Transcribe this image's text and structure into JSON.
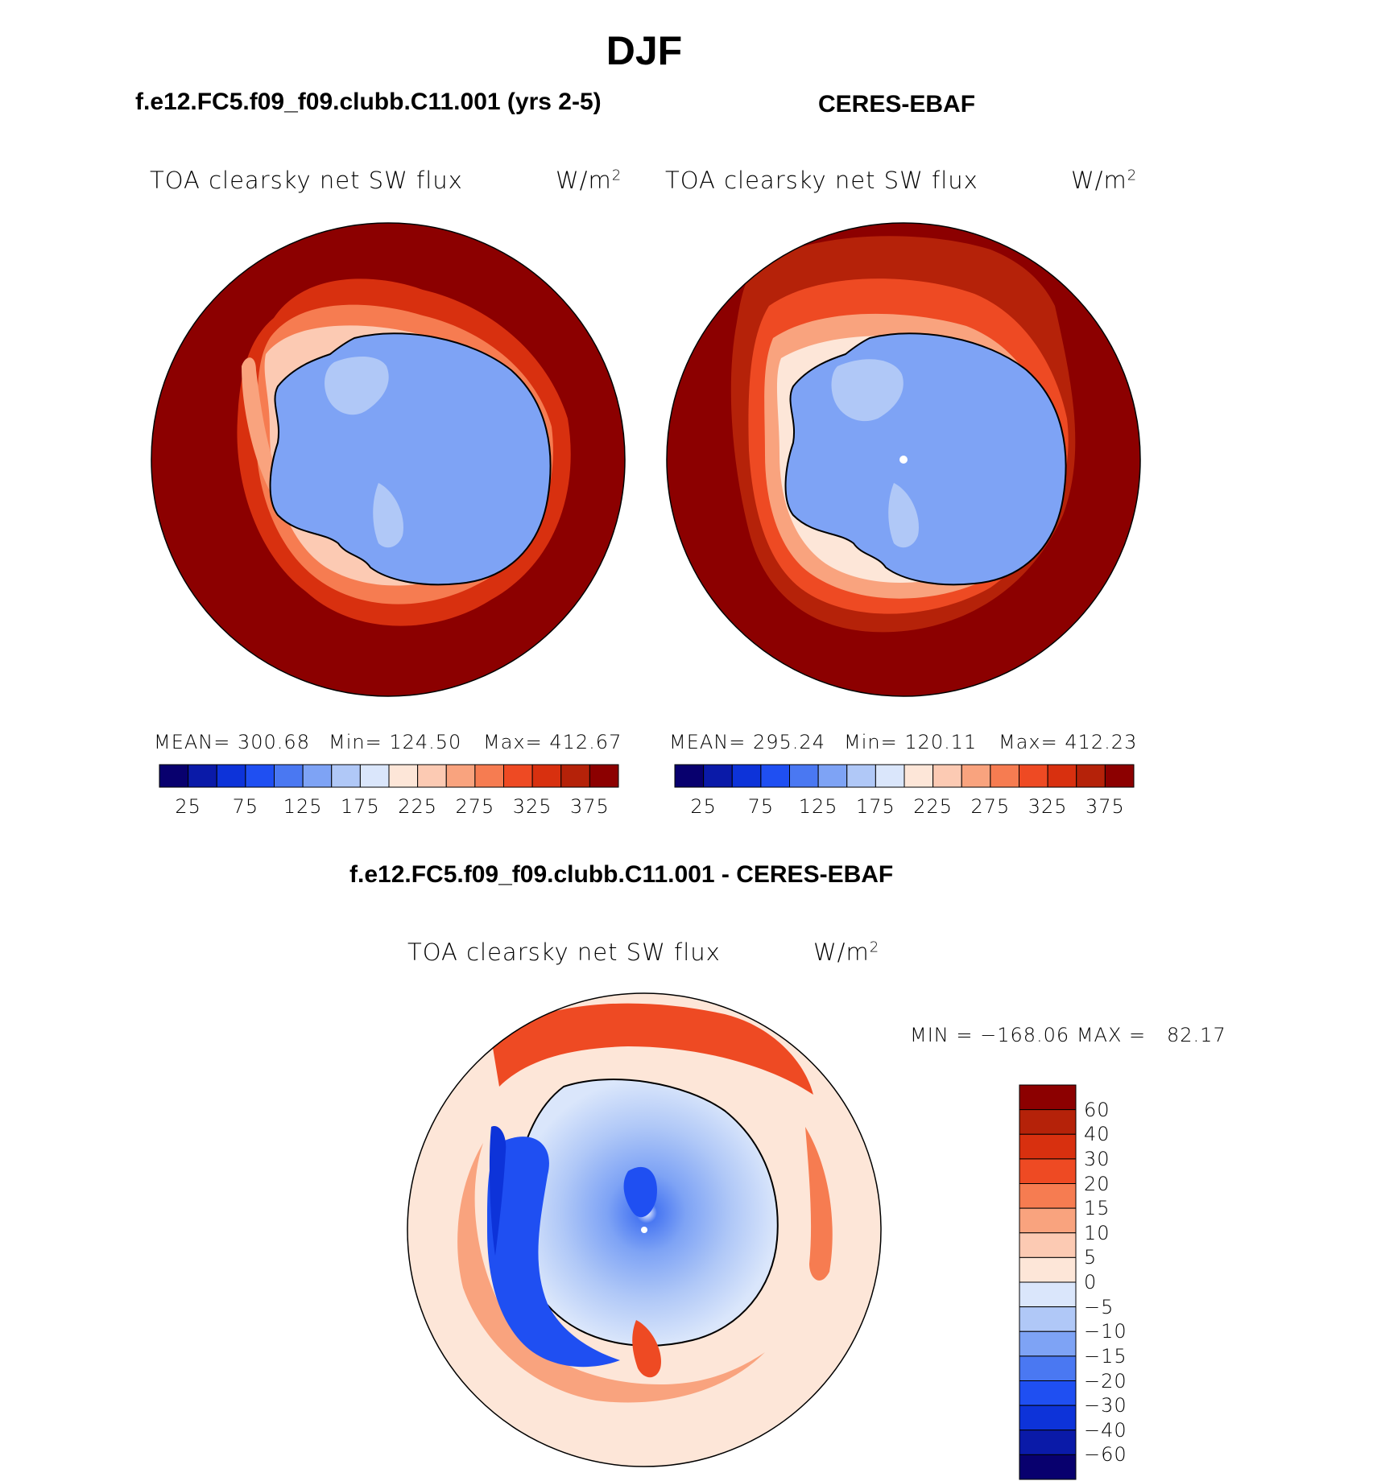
{
  "title": "DJF",
  "chart_data": [
    {
      "type": "heatmap",
      "title": "f.e12.FC5.f09_f09.clubb.C11.001 (yrs 2-5)",
      "variable": "TOA clearsky net SW flux",
      "units_base": "W/m",
      "units_exp": "2",
      "projection": "south polar stereographic",
      "stats": {
        "mean": "MEAN= 300.68",
        "min": "Min= 124.50",
        "max": "Max= 412.67"
      },
      "colorbar": {
        "orientation": "horizontal",
        "ticks": [
          "25",
          "75",
          "125",
          "175",
          "225",
          "275",
          "325",
          "375"
        ],
        "levels": [
          0,
          25,
          50,
          75,
          100,
          125,
          150,
          175,
          200,
          225,
          250,
          275,
          300,
          325,
          350,
          375,
          400
        ]
      }
    },
    {
      "type": "heatmap",
      "title": "CERES-EBAF",
      "variable": "TOA clearsky net SW flux",
      "units_base": "W/m",
      "units_exp": "2",
      "projection": "south polar stereographic",
      "stats": {
        "mean": "MEAN= 295.24",
        "min": "Min= 120.11",
        "max": "Max= 412.23"
      },
      "colorbar": {
        "orientation": "horizontal",
        "ticks": [
          "25",
          "75",
          "125",
          "175",
          "225",
          "275",
          "325",
          "375"
        ],
        "levels": [
          0,
          25,
          50,
          75,
          100,
          125,
          150,
          175,
          200,
          225,
          250,
          275,
          300,
          325,
          350,
          375,
          400
        ]
      }
    },
    {
      "type": "heatmap",
      "title": "f.e12.FC5.f09_f09.clubb.C11.001 - CERES-EBAF",
      "variable": "TOA clearsky net SW flux",
      "units_base": "W/m",
      "units_exp": "2",
      "projection": "south polar stereographic",
      "stats": {
        "minmax": "MIN = −168.06 MAX =   82.17"
      },
      "colorbar": {
        "orientation": "vertical",
        "ticks": [
          "60",
          "40",
          "30",
          "20",
          "15",
          "10",
          "5",
          "0",
          "−5",
          "−10",
          "−15",
          "−20",
          "−30",
          "−40",
          "−60"
        ]
      }
    }
  ],
  "colors": {
    "seq": [
      "#08006e",
      "#0a1aa8",
      "#0d33d9",
      "#1f4ff2",
      "#4a78f2",
      "#7ea3f5",
      "#b0c8f7",
      "#dae6fb",
      "#fde6d8",
      "#fccab3",
      "#f9a37e",
      "#f67c51",
      "#ee4a23",
      "#d8300f",
      "#b52209",
      "#8c0000"
    ],
    "div": [
      "#8c0000",
      "#b52209",
      "#d8300f",
      "#ee4a23",
      "#f67c51",
      "#f9a37e",
      "#fccab3",
      "#fde6d8",
      "#dae6fb",
      "#b0c8f7",
      "#7ea3f5",
      "#4a78f2",
      "#1f4ff2",
      "#0d33d9",
      "#0a1aa8",
      "#08006e"
    ]
  }
}
